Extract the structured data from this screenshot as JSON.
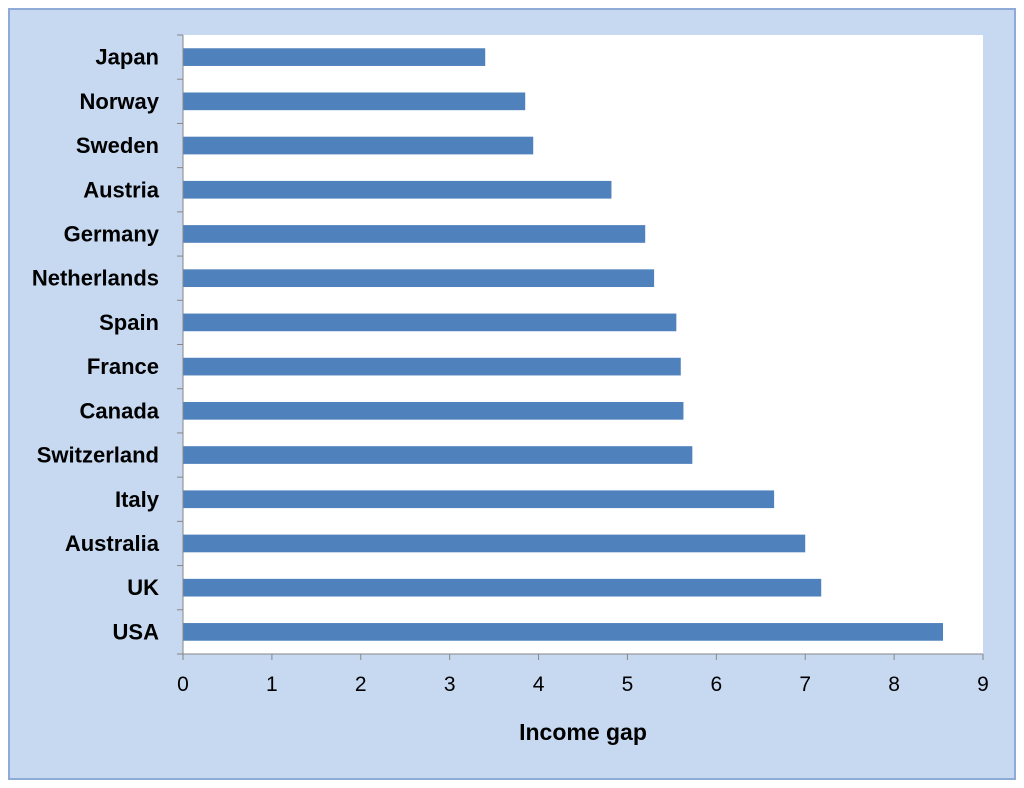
{
  "chart_data": {
    "type": "bar",
    "orientation": "horizontal",
    "title": "",
    "xlabel": "Income gap",
    "ylabel": "",
    "xlim": [
      0,
      9
    ],
    "xticks": [
      0,
      1,
      2,
      3,
      4,
      5,
      6,
      7,
      8,
      9
    ],
    "grid": false,
    "legend": "none",
    "categories": [
      "Japan",
      "Norway",
      "Sweden",
      "Austria",
      "Germany",
      "Netherlands",
      "Spain",
      "France",
      "Canada",
      "Switzerland",
      "Italy",
      "Australia",
      "UK",
      "USA"
    ],
    "values": [
      3.4,
      3.85,
      3.94,
      4.82,
      5.2,
      5.3,
      5.55,
      5.6,
      5.63,
      5.73,
      6.65,
      7.0,
      7.18,
      8.55
    ],
    "colors": {
      "bar": "#4f81bd",
      "frame_background": "#c6d9f1",
      "frame_border": "#8eaad6",
      "plot_background": "#ffffff",
      "axis": "#868686"
    }
  }
}
